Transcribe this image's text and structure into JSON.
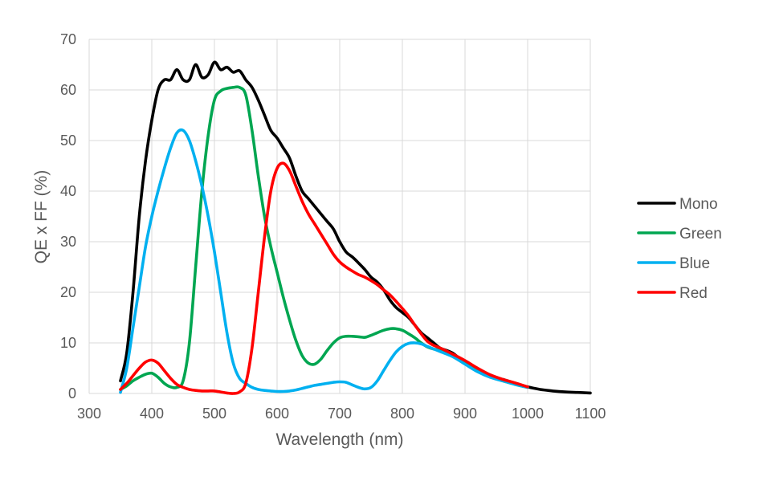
{
  "chart_data": {
    "type": "line",
    "title": "",
    "xlabel": "Wavelength (nm)",
    "ylabel": "QE x FF (%)",
    "xlim": [
      300,
      1100
    ],
    "ylim": [
      0,
      70
    ],
    "xticks": [
      300,
      400,
      500,
      600,
      700,
      800,
      900,
      1000,
      1100
    ],
    "yticks": [
      0,
      10,
      20,
      30,
      40,
      50,
      60,
      70
    ],
    "grid": true,
    "legend_position": "right",
    "series": [
      {
        "name": "Mono",
        "color": "#000000",
        "points": [
          [
            350,
            2.5
          ],
          [
            360,
            8
          ],
          [
            370,
            20
          ],
          [
            380,
            35
          ],
          [
            390,
            46
          ],
          [
            400,
            54
          ],
          [
            410,
            60
          ],
          [
            420,
            62
          ],
          [
            430,
            62
          ],
          [
            440,
            64
          ],
          [
            450,
            62
          ],
          [
            460,
            62
          ],
          [
            470,
            65
          ],
          [
            480,
            62.5
          ],
          [
            490,
            63
          ],
          [
            500,
            65.5
          ],
          [
            510,
            64
          ],
          [
            520,
            64.5
          ],
          [
            530,
            63.5
          ],
          [
            540,
            63.8
          ],
          [
            550,
            62
          ],
          [
            560,
            60.5
          ],
          [
            570,
            58
          ],
          [
            580,
            55
          ],
          [
            590,
            52
          ],
          [
            600,
            50.5
          ],
          [
            610,
            48.5
          ],
          [
            620,
            46.5
          ],
          [
            630,
            43
          ],
          [
            640,
            40
          ],
          [
            650,
            38.5
          ],
          [
            660,
            37
          ],
          [
            670,
            35.5
          ],
          [
            680,
            34
          ],
          [
            690,
            32.5
          ],
          [
            700,
            30
          ],
          [
            710,
            28
          ],
          [
            720,
            27
          ],
          [
            730,
            25.8
          ],
          [
            740,
            24.5
          ],
          [
            750,
            23
          ],
          [
            760,
            22
          ],
          [
            770,
            20.5
          ],
          [
            780,
            18.5
          ],
          [
            790,
            17
          ],
          [
            800,
            16
          ],
          [
            810,
            15
          ],
          [
            820,
            13.5
          ],
          [
            830,
            12
          ],
          [
            840,
            11
          ],
          [
            850,
            10
          ],
          [
            860,
            9
          ],
          [
            880,
            8
          ],
          [
            900,
            6
          ],
          [
            920,
            4.5
          ],
          [
            940,
            3.5
          ],
          [
            960,
            2.8
          ],
          [
            980,
            2
          ],
          [
            1000,
            1.3
          ],
          [
            1020,
            0.8
          ],
          [
            1040,
            0.5
          ],
          [
            1060,
            0.3
          ],
          [
            1080,
            0.2
          ],
          [
            1100,
            0.1
          ]
        ]
      },
      {
        "name": "Green",
        "color": "#00A651",
        "points": [
          [
            350,
            0.8
          ],
          [
            360,
            1.5
          ],
          [
            370,
            2.5
          ],
          [
            380,
            3.2
          ],
          [
            390,
            3.8
          ],
          [
            400,
            4
          ],
          [
            410,
            3.2
          ],
          [
            420,
            2
          ],
          [
            430,
            1.3
          ],
          [
            440,
            1.2
          ],
          [
            450,
            2.5
          ],
          [
            460,
            10
          ],
          [
            470,
            25
          ],
          [
            480,
            40
          ],
          [
            490,
            51
          ],
          [
            500,
            58
          ],
          [
            510,
            59.8
          ],
          [
            520,
            60.3
          ],
          [
            530,
            60.5
          ],
          [
            540,
            60.5
          ],
          [
            550,
            59
          ],
          [
            560,
            52
          ],
          [
            570,
            43
          ],
          [
            580,
            35
          ],
          [
            590,
            29
          ],
          [
            600,
            24
          ],
          [
            610,
            19
          ],
          [
            620,
            14.5
          ],
          [
            630,
            10.5
          ],
          [
            640,
            7.5
          ],
          [
            650,
            6
          ],
          [
            660,
            5.8
          ],
          [
            670,
            6.8
          ],
          [
            680,
            8.5
          ],
          [
            690,
            10
          ],
          [
            700,
            11
          ],
          [
            710,
            11.3
          ],
          [
            720,
            11.3
          ],
          [
            730,
            11.2
          ],
          [
            740,
            11.1
          ],
          [
            750,
            11.5
          ],
          [
            760,
            12
          ],
          [
            770,
            12.5
          ],
          [
            780,
            12.8
          ],
          [
            790,
            12.8
          ],
          [
            800,
            12.5
          ],
          [
            810,
            11.8
          ],
          [
            820,
            11
          ],
          [
            830,
            10
          ],
          [
            840,
            9.2
          ],
          [
            850,
            8.8
          ],
          [
            860,
            8.5
          ],
          [
            880,
            7.5
          ],
          [
            900,
            6
          ],
          [
            920,
            4.5
          ],
          [
            940,
            3.3
          ],
          [
            960,
            2.5
          ],
          [
            980,
            1.8
          ],
          [
            1000,
            1.2
          ]
        ]
      },
      {
        "name": "Blue",
        "color": "#00B0F0",
        "points": [
          [
            350,
            0.2
          ],
          [
            360,
            5
          ],
          [
            370,
            13
          ],
          [
            380,
            21
          ],
          [
            390,
            29
          ],
          [
            400,
            35
          ],
          [
            410,
            40
          ],
          [
            420,
            44.5
          ],
          [
            430,
            48.5
          ],
          [
            440,
            51.5
          ],
          [
            450,
            52
          ],
          [
            460,
            50
          ],
          [
            470,
            46
          ],
          [
            480,
            41
          ],
          [
            490,
            35
          ],
          [
            500,
            28
          ],
          [
            510,
            20
          ],
          [
            520,
            12
          ],
          [
            530,
            6
          ],
          [
            540,
            3
          ],
          [
            550,
            2
          ],
          [
            560,
            1.2
          ],
          [
            570,
            0.8
          ],
          [
            580,
            0.6
          ],
          [
            590,
            0.5
          ],
          [
            600,
            0.4
          ],
          [
            610,
            0.4
          ],
          [
            620,
            0.5
          ],
          [
            630,
            0.7
          ],
          [
            640,
            1
          ],
          [
            650,
            1.3
          ],
          [
            660,
            1.6
          ],
          [
            670,
            1.8
          ],
          [
            680,
            2
          ],
          [
            690,
            2.2
          ],
          [
            700,
            2.3
          ],
          [
            710,
            2.2
          ],
          [
            720,
            1.7
          ],
          [
            730,
            1.2
          ],
          [
            740,
            0.9
          ],
          [
            750,
            1.2
          ],
          [
            760,
            2.5
          ],
          [
            770,
            4.5
          ],
          [
            780,
            6.5
          ],
          [
            790,
            8.2
          ],
          [
            800,
            9.3
          ],
          [
            810,
            9.9
          ],
          [
            820,
            10
          ],
          [
            830,
            9.8
          ],
          [
            840,
            9.3
          ],
          [
            850,
            8.8
          ],
          [
            860,
            8.3
          ],
          [
            880,
            7.3
          ],
          [
            900,
            5.8
          ],
          [
            920,
            4.3
          ],
          [
            940,
            3.2
          ],
          [
            960,
            2.5
          ],
          [
            980,
            1.8
          ],
          [
            1000,
            1.2
          ]
        ]
      },
      {
        "name": "Red",
        "color": "#FF0000",
        "points": [
          [
            350,
            0.8
          ],
          [
            360,
            2
          ],
          [
            370,
            3.5
          ],
          [
            380,
            5
          ],
          [
            390,
            6.2
          ],
          [
            400,
            6.6
          ],
          [
            410,
            6
          ],
          [
            420,
            4.5
          ],
          [
            430,
            3
          ],
          [
            440,
            1.8
          ],
          [
            450,
            1.2
          ],
          [
            460,
            0.8
          ],
          [
            470,
            0.6
          ],
          [
            480,
            0.5
          ],
          [
            490,
            0.5
          ],
          [
            500,
            0.5
          ],
          [
            510,
            0.3
          ],
          [
            520,
            0.1
          ],
          [
            530,
            0
          ],
          [
            540,
            0.3
          ],
          [
            550,
            2
          ],
          [
            560,
            9
          ],
          [
            570,
            20
          ],
          [
            580,
            31
          ],
          [
            590,
            40
          ],
          [
            600,
            44.5
          ],
          [
            610,
            45.5
          ],
          [
            620,
            44
          ],
          [
            630,
            41
          ],
          [
            640,
            38
          ],
          [
            650,
            35.5
          ],
          [
            660,
            33.5
          ],
          [
            670,
            31.5
          ],
          [
            680,
            29.5
          ],
          [
            690,
            27.5
          ],
          [
            700,
            26
          ],
          [
            710,
            25
          ],
          [
            720,
            24.2
          ],
          [
            730,
            23.5
          ],
          [
            740,
            23
          ],
          [
            750,
            22.3
          ],
          [
            760,
            21.5
          ],
          [
            770,
            20.5
          ],
          [
            780,
            19.5
          ],
          [
            790,
            18.2
          ],
          [
            800,
            16.8
          ],
          [
            810,
            15.3
          ],
          [
            820,
            13.5
          ],
          [
            830,
            11.8
          ],
          [
            840,
            10.3
          ],
          [
            850,
            9.5
          ],
          [
            860,
            9
          ],
          [
            880,
            7.8
          ],
          [
            900,
            6.5
          ],
          [
            920,
            5
          ],
          [
            940,
            3.7
          ],
          [
            960,
            2.8
          ],
          [
            980,
            2.1
          ],
          [
            1000,
            1.3
          ]
        ]
      }
    ]
  }
}
